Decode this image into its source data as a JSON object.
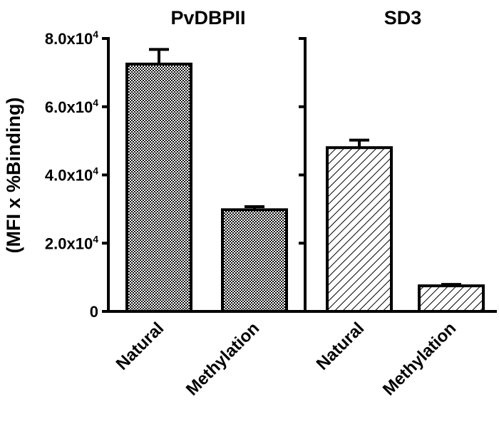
{
  "chart_data": {
    "type": "bar",
    "ylabel": "(MFI x %Binding)",
    "ylim": [
      0,
      80000
    ],
    "y_ticks": [
      {
        "value": 0,
        "base": "0",
        "exp": ""
      },
      {
        "value": 20000,
        "base": "2.0x10",
        "exp": "4"
      },
      {
        "value": 40000,
        "base": "4.0x10",
        "exp": "4"
      },
      {
        "value": 60000,
        "base": "6.0x10",
        "exp": "4"
      },
      {
        "value": 80000,
        "base": "8.0x10",
        "exp": "4"
      }
    ],
    "panels": [
      {
        "title": "PvDBPII",
        "pattern": "checker",
        "categories": [
          "Natural",
          "Methylation"
        ],
        "values": [
          72500,
          29800
        ],
        "errors": [
          4300,
          900
        ]
      },
      {
        "title": "SD3",
        "pattern": "hatch",
        "categories": [
          "Natural",
          "Methylation"
        ],
        "values": [
          48000,
          7500
        ],
        "errors": [
          2200,
          400
        ]
      }
    ],
    "grid": false,
    "legend": "none"
  }
}
